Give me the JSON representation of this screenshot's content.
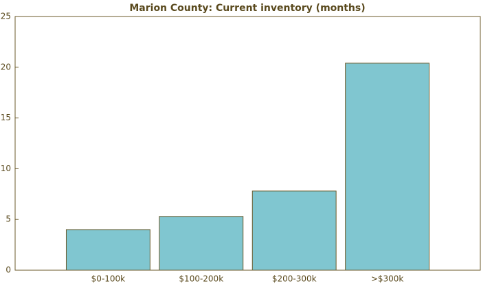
{
  "chart_data": {
    "type": "bar",
    "title": "Marion County: Current inventory (months)",
    "categories": [
      "$0-100k",
      "$100-200k",
      "$200-300k",
      ">$300k"
    ],
    "values": [
      4.0,
      5.3,
      7.8,
      20.4
    ],
    "color": "#80c6d0",
    "ylim": [
      0,
      25
    ],
    "yticks": [
      0,
      5,
      10,
      15,
      20,
      25
    ],
    "grid": false
  }
}
